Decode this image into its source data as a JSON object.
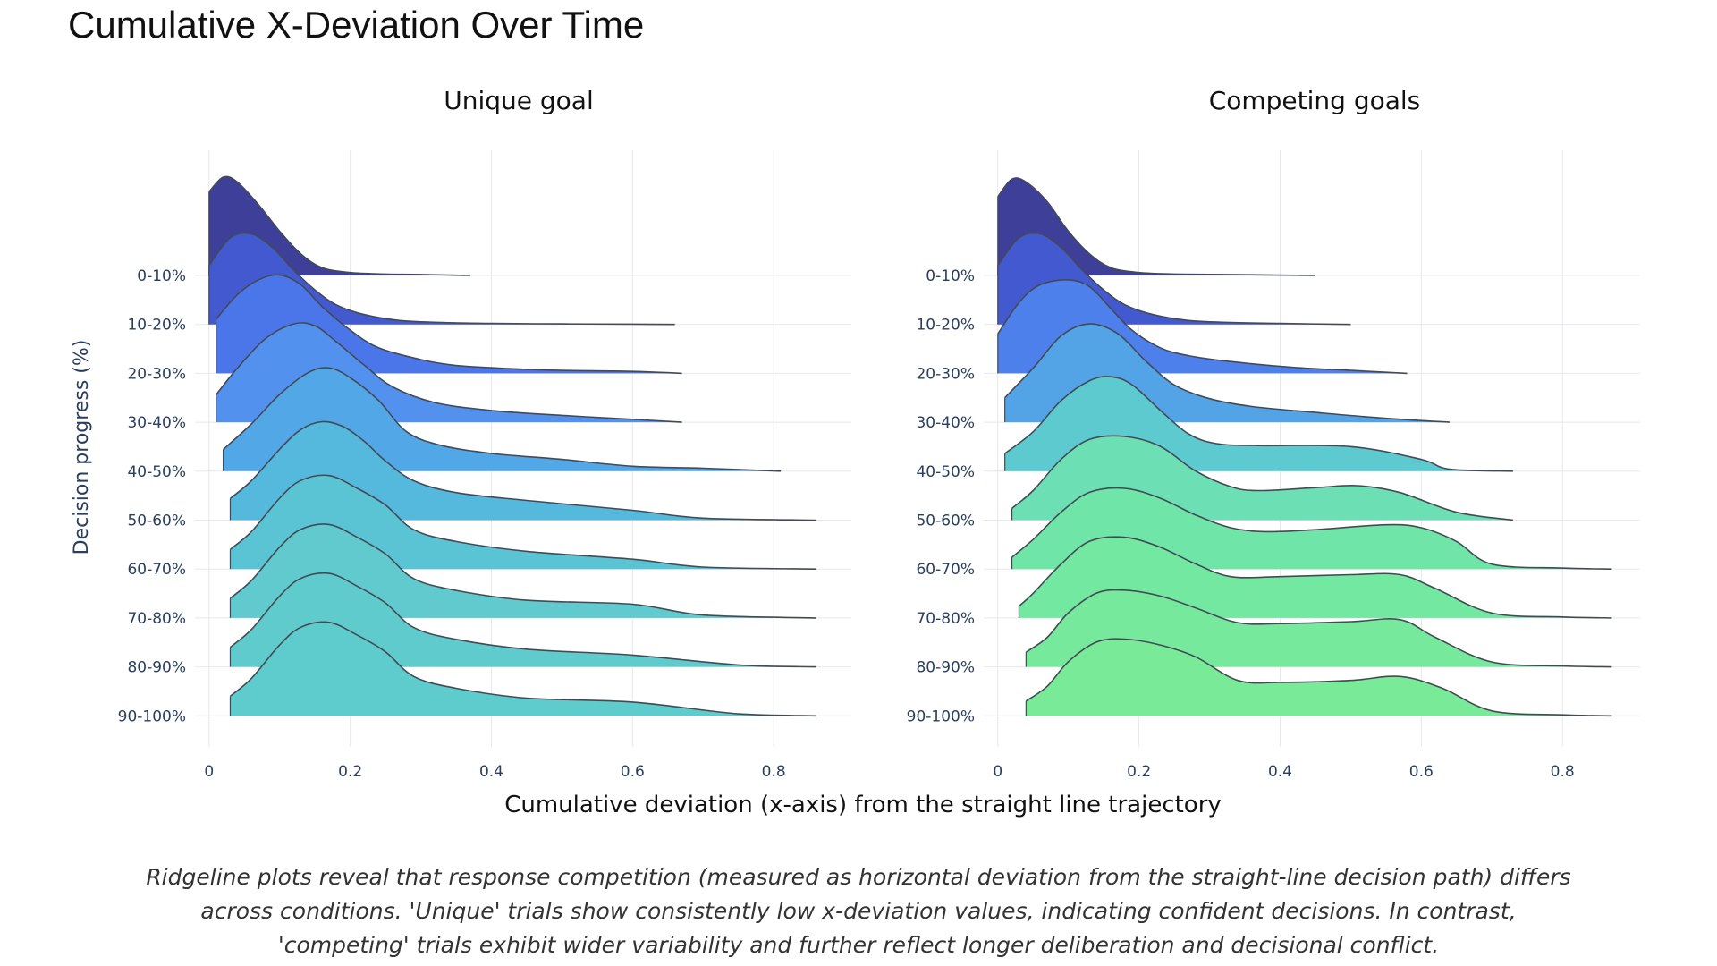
{
  "page": {
    "title": "Cumulative X-Deviation Over Time",
    "caption": "Ridgeline plots reveal that response competition (measured as horizontal deviation from the straight-line decision path) differs across conditions. 'Unique' trials show consistently low x-deviation values, indicating confident decisions. In contrast, 'competing' trials exhibit wider variability and further reflect longer deliberation and decisional conflict."
  },
  "chart_data": {
    "type": "ridgeline",
    "xlabel": "Cumulative deviation (x-axis) from the straight line trajectory",
    "ylabel": "Decision progress (%)",
    "x_ticks": [
      "0",
      "0.2",
      "0.4",
      "0.6",
      "0.8"
    ],
    "xlim": [
      -0.02,
      0.91
    ],
    "grid": true,
    "categories": [
      "0-10%",
      "10-20%",
      "20-30%",
      "30-40%",
      "40-50%",
      "50-60%",
      "60-70%",
      "70-80%",
      "80-90%",
      "90-100%"
    ],
    "panels": [
      {
        "title": "Unique goal",
        "series": [
          {
            "name": "0-10%",
            "color": "#3d3f99",
            "x": [
              0.0,
              0.02,
              0.04,
              0.07,
              0.1,
              0.13,
              0.16,
              0.2,
              0.25,
              0.3,
              0.37
            ],
            "density": [
              0.85,
              1.0,
              0.95,
              0.72,
              0.45,
              0.22,
              0.08,
              0.03,
              0.015,
              0.01,
              0.0
            ]
          },
          {
            "name": "10-20%",
            "color": "#4359cf",
            "x": [
              0.0,
              0.03,
              0.06,
              0.09,
              0.12,
              0.15,
              0.18,
              0.22,
              0.27,
              0.33,
              0.4,
              0.5,
              0.6,
              0.66
            ],
            "density": [
              0.6,
              0.88,
              0.92,
              0.78,
              0.55,
              0.35,
              0.2,
              0.1,
              0.04,
              0.02,
              0.01,
              0.005,
              0.003,
              0.0
            ]
          },
          {
            "name": "20-30%",
            "color": "#4b76ea",
            "x": [
              0.01,
              0.04,
              0.07,
              0.1,
              0.13,
              0.16,
              0.2,
              0.24,
              0.3,
              0.35,
              0.42,
              0.5,
              0.6,
              0.67
            ],
            "density": [
              0.55,
              0.8,
              0.95,
              1.0,
              0.9,
              0.68,
              0.44,
              0.26,
              0.14,
              0.08,
              0.05,
              0.03,
              0.02,
              0.0
            ]
          },
          {
            "name": "30-40%",
            "color": "#5291ed",
            "x": [
              0.01,
              0.04,
              0.08,
              0.12,
              0.15,
              0.18,
              0.22,
              0.26,
              0.32,
              0.4,
              0.5,
              0.6,
              0.67
            ],
            "density": [
              0.28,
              0.55,
              0.85,
              1.0,
              0.98,
              0.82,
              0.58,
              0.36,
              0.2,
              0.12,
              0.07,
              0.03,
              0.0
            ]
          },
          {
            "name": "40-50%",
            "color": "#52a7e6",
            "x": [
              0.02,
              0.06,
              0.1,
              0.14,
              0.17,
              0.2,
              0.24,
              0.28,
              0.33,
              0.4,
              0.5,
              0.6,
              0.7,
              0.81
            ],
            "density": [
              0.22,
              0.48,
              0.78,
              1.0,
              1.05,
              0.95,
              0.72,
              0.4,
              0.26,
              0.18,
              0.12,
              0.05,
              0.03,
              0.0
            ]
          },
          {
            "name": "50-60%",
            "color": "#55b8dd",
            "x": [
              0.03,
              0.06,
              0.1,
              0.13,
              0.16,
              0.19,
              0.22,
              0.25,
              0.29,
              0.35,
              0.45,
              0.6,
              0.7,
              0.86
            ],
            "density": [
              0.22,
              0.4,
              0.72,
              0.92,
              1.0,
              0.95,
              0.8,
              0.6,
              0.4,
              0.28,
              0.2,
              0.1,
              0.02,
              0.0
            ]
          },
          {
            "name": "60-70%",
            "color": "#5bc4d4",
            "x": [
              0.03,
              0.06,
              0.1,
              0.13,
              0.17,
              0.21,
              0.25,
              0.29,
              0.35,
              0.45,
              0.6,
              0.7,
              0.86
            ],
            "density": [
              0.2,
              0.38,
              0.72,
              0.9,
              0.95,
              0.82,
              0.65,
              0.4,
              0.28,
              0.18,
              0.1,
              0.02,
              0.0
            ]
          },
          {
            "name": "70-80%",
            "color": "#60cace",
            "x": [
              0.03,
              0.06,
              0.1,
              0.13,
              0.17,
              0.21,
              0.25,
              0.29,
              0.35,
              0.45,
              0.6,
              0.7,
              0.86
            ],
            "density": [
              0.2,
              0.38,
              0.72,
              0.9,
              0.95,
              0.82,
              0.65,
              0.4,
              0.28,
              0.18,
              0.14,
              0.03,
              0.0
            ]
          },
          {
            "name": "80-90%",
            "color": "#5fcbcc",
            "x": [
              0.03,
              0.06,
              0.1,
              0.13,
              0.17,
              0.21,
              0.25,
              0.29,
              0.35,
              0.45,
              0.6,
              0.75,
              0.86
            ],
            "density": [
              0.2,
              0.38,
              0.72,
              0.9,
              0.95,
              0.82,
              0.65,
              0.4,
              0.28,
              0.18,
              0.12,
              0.02,
              0.0
            ]
          },
          {
            "name": "90-100%",
            "color": "#5ecccc",
            "x": [
              0.03,
              0.06,
              0.1,
              0.13,
              0.17,
              0.21,
              0.25,
              0.29,
              0.35,
              0.45,
              0.6,
              0.75,
              0.86
            ],
            "density": [
              0.2,
              0.38,
              0.72,
              0.9,
              0.95,
              0.82,
              0.65,
              0.4,
              0.28,
              0.18,
              0.14,
              0.02,
              0.0
            ]
          }
        ]
      },
      {
        "title": "Competing goals",
        "series": [
          {
            "name": "0-10%",
            "color": "#3d3f99",
            "x": [
              0.0,
              0.02,
              0.04,
              0.07,
              0.1,
              0.13,
              0.16,
              0.2,
              0.25,
              0.32,
              0.45
            ],
            "density": [
              0.8,
              0.98,
              0.95,
              0.75,
              0.45,
              0.22,
              0.08,
              0.03,
              0.015,
              0.01,
              0.0
            ]
          },
          {
            "name": "10-20%",
            "color": "#4359cf",
            "x": [
              0.0,
              0.03,
              0.06,
              0.09,
              0.12,
              0.15,
              0.18,
              0.22,
              0.27,
              0.33,
              0.4,
              0.5
            ],
            "density": [
              0.6,
              0.88,
              0.92,
              0.78,
              0.55,
              0.35,
              0.2,
              0.1,
              0.04,
              0.02,
              0.01,
              0.0
            ]
          },
          {
            "name": "20-30%",
            "color": "#4d80eb",
            "x": [
              0.0,
              0.03,
              0.06,
              0.1,
              0.13,
              0.16,
              0.19,
              0.23,
              0.27,
              0.33,
              0.42,
              0.5,
              0.58
            ],
            "density": [
              0.4,
              0.72,
              0.9,
              0.95,
              0.88,
              0.66,
              0.44,
              0.26,
              0.18,
              0.12,
              0.06,
              0.03,
              0.0
            ]
          },
          {
            "name": "30-40%",
            "color": "#53a4e6",
            "x": [
              0.01,
              0.05,
              0.09,
              0.13,
              0.17,
              0.21,
              0.25,
              0.3,
              0.36,
              0.45,
              0.55,
              0.64
            ],
            "density": [
              0.25,
              0.55,
              0.88,
              1.0,
              0.9,
              0.62,
              0.38,
              0.24,
              0.16,
              0.1,
              0.04,
              0.0
            ]
          },
          {
            "name": "40-50%",
            "color": "#5ccacf",
            "x": [
              0.01,
              0.05,
              0.09,
              0.13,
              0.16,
              0.19,
              0.23,
              0.27,
              0.31,
              0.37,
              0.5,
              0.6,
              0.64,
              0.73
            ],
            "density": [
              0.18,
              0.4,
              0.72,
              0.92,
              0.96,
              0.88,
              0.62,
              0.38,
              0.28,
              0.26,
              0.25,
              0.12,
              0.02,
              0.0
            ]
          },
          {
            "name": "50-60%",
            "color": "#6ddfb5",
            "x": [
              0.02,
              0.05,
              0.09,
              0.13,
              0.18,
              0.23,
              0.28,
              0.33,
              0.37,
              0.45,
              0.51,
              0.57,
              0.65,
              0.73
            ],
            "density": [
              0.12,
              0.3,
              0.62,
              0.82,
              0.85,
              0.75,
              0.5,
              0.34,
              0.3,
              0.33,
              0.35,
              0.28,
              0.08,
              0.0
            ]
          },
          {
            "name": "60-70%",
            "color": "#6fe6a8",
            "x": [
              0.02,
              0.05,
              0.09,
              0.13,
              0.18,
              0.23,
              0.28,
              0.33,
              0.38,
              0.45,
              0.55,
              0.6,
              0.65,
              0.7,
              0.8,
              0.87
            ],
            "density": [
              0.12,
              0.3,
              0.58,
              0.78,
              0.82,
              0.72,
              0.55,
              0.42,
              0.38,
              0.4,
              0.45,
              0.42,
              0.28,
              0.05,
              0.01,
              0.0
            ]
          },
          {
            "name": "70-80%",
            "color": "#72e8a0",
            "x": [
              0.03,
              0.05,
              0.09,
              0.13,
              0.18,
              0.23,
              0.28,
              0.33,
              0.4,
              0.5,
              0.57,
              0.62,
              0.7,
              0.8,
              0.87
            ],
            "density": [
              0.12,
              0.25,
              0.55,
              0.78,
              0.82,
              0.72,
              0.55,
              0.42,
              0.42,
              0.44,
              0.44,
              0.3,
              0.05,
              0.01,
              0.0
            ]
          },
          {
            "name": "80-90%",
            "color": "#76e99c",
            "x": [
              0.04,
              0.07,
              0.1,
              0.14,
              0.18,
              0.23,
              0.28,
              0.34,
              0.4,
              0.5,
              0.57,
              0.62,
              0.7,
              0.8,
              0.87
            ],
            "density": [
              0.15,
              0.3,
              0.55,
              0.75,
              0.78,
              0.72,
              0.6,
              0.45,
              0.44,
              0.46,
              0.48,
              0.3,
              0.05,
              0.01,
              0.0
            ]
          },
          {
            "name": "90-100%",
            "color": "#79ea98",
            "x": [
              0.04,
              0.07,
              0.1,
              0.14,
              0.18,
              0.23,
              0.28,
              0.34,
              0.4,
              0.5,
              0.57,
              0.63,
              0.7,
              0.8,
              0.87
            ],
            "density": [
              0.15,
              0.3,
              0.55,
              0.75,
              0.78,
              0.72,
              0.6,
              0.36,
              0.34,
              0.36,
              0.4,
              0.28,
              0.05,
              0.01,
              0.0
            ]
          }
        ]
      }
    ]
  }
}
